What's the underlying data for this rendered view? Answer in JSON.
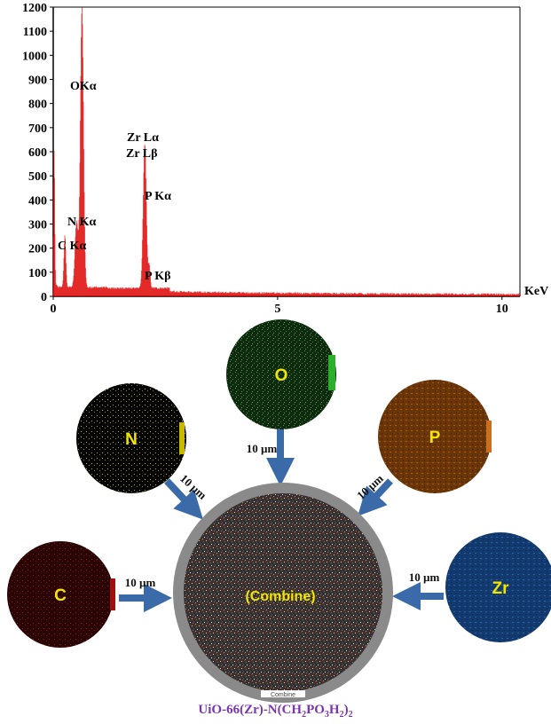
{
  "chart_data": {
    "type": "line",
    "xlabel": "KeV",
    "ylabel": "",
    "xlim": [
      0,
      10.4
    ],
    "ylim": [
      0,
      1200
    ],
    "x_ticks": [
      0,
      5,
      10
    ],
    "y_ticks": [
      0,
      100,
      200,
      300,
      400,
      500,
      600,
      700,
      800,
      900,
      1000,
      1100,
      1200
    ],
    "grid": false,
    "color": "#e00000",
    "peaks": [
      {
        "x": 0.02,
        "y": 560
      },
      {
        "x": 0.26,
        "y": 215
      },
      {
        "x": 0.52,
        "y": 270
      },
      {
        "x": 0.64,
        "y": 1160
      },
      {
        "x": 2.04,
        "y": 600
      },
      {
        "x": 2.14,
        "y": 90
      }
    ],
    "annotations": [
      {
        "text": "OKα"
      },
      {
        "text": "Zr Lα"
      },
      {
        "text": "Zr Lβ"
      },
      {
        "text": "P Kα"
      },
      {
        "text": "N Kα"
      },
      {
        "text": "C Kα"
      },
      {
        "text": "P Kβ"
      }
    ]
  },
  "maps": {
    "o": {
      "label": "O",
      "color": "#2a6a2a",
      "scale": "10 µm"
    },
    "n": {
      "label": "N",
      "color": "#1a1a1a",
      "scale": "10 µm"
    },
    "p": {
      "label": "P",
      "color": "#8a4a12",
      "scale": "10 µm"
    },
    "c": {
      "label": "C",
      "color": "#5a0d0d",
      "scale": "10 µm"
    },
    "zr": {
      "label": "Zr",
      "color": "#1d4c8a",
      "scale": "10 µm"
    },
    "combine": {
      "label": "(Combine)",
      "footer": "Combine"
    }
  },
  "caption": {
    "prefix": "UiO-66(Zr)-N(CH",
    "s1": "2",
    "m1": "PO",
    "s2": "3",
    "m2": "H",
    "s3": "2",
    "m3": ")",
    "s4": "2"
  },
  "arrow_color": "#3a6aa8"
}
